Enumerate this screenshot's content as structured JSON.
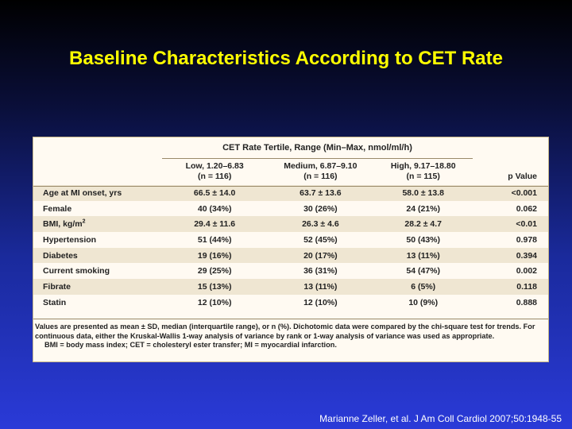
{
  "slide": {
    "title": "Baseline Characteristics According to CET Rate",
    "citation": "Marianne Zeller, et al. J Am Coll Cardiol 2007;50:1948-55"
  },
  "table": {
    "group_header": "CET Rate Tertile, Range (Min–Max, nmol/ml/h)",
    "columns": [
      {
        "line1": "Low, 1.20–6.83",
        "line2": "(n = 116)"
      },
      {
        "line1": "Medium, 6.87–9.10",
        "line2": "(n = 116)"
      },
      {
        "line1": "High, 9.17–18.80",
        "line2": "(n = 115)"
      }
    ],
    "p_header": "p Value",
    "rows": [
      {
        "label": "Age at MI onset, yrs",
        "low": "66.5 ± 14.0",
        "medium": "63.7 ± 13.6",
        "high": "58.0 ± 13.8",
        "p": "<0.001"
      },
      {
        "label": "Female",
        "low": "40 (34%)",
        "medium": "30 (26%)",
        "high": "24 (21%)",
        "p": "0.062"
      },
      {
        "label": "BMI, kg/m",
        "label_sup": "2",
        "low": "29.4 ± 11.6",
        "medium": "26.3 ± 4.6",
        "high": "28.2 ± 4.7",
        "p": "<0.01"
      },
      {
        "label": "Hypertension",
        "low": "51 (44%)",
        "medium": "52 (45%)",
        "high": "50 (43%)",
        "p": "0.978"
      },
      {
        "label": "Diabetes",
        "low": "19 (16%)",
        "medium": "20 (17%)",
        "high": "13 (11%)",
        "p": "0.394"
      },
      {
        "label": "Current smoking",
        "low": "29 (25%)",
        "medium": "36 (31%)",
        "high": "54 (47%)",
        "p": "0.002"
      },
      {
        "label": "Fibrate",
        "low": "15 (13%)",
        "medium": "13 (11%)",
        "high": "6 (5%)",
        "p": "0.118"
      },
      {
        "label": "Statin",
        "low": "12 (10%)",
        "medium": "12 (10%)",
        "high": "10 (9%)",
        "p": "0.888"
      }
    ],
    "footnote_1": "Values are presented as mean ± SD, median (interquartile range), or n (%). Dichotomic data were compared by the chi-square test for trends. For continuous data, either the Kruskal-Wallis 1-way analysis of variance by rank or 1-way analysis of variance was used as appropriate.",
    "footnote_2": "BMI = body mass index; CET = cholesteryl ester transfer; MI = myocardial infarction."
  }
}
